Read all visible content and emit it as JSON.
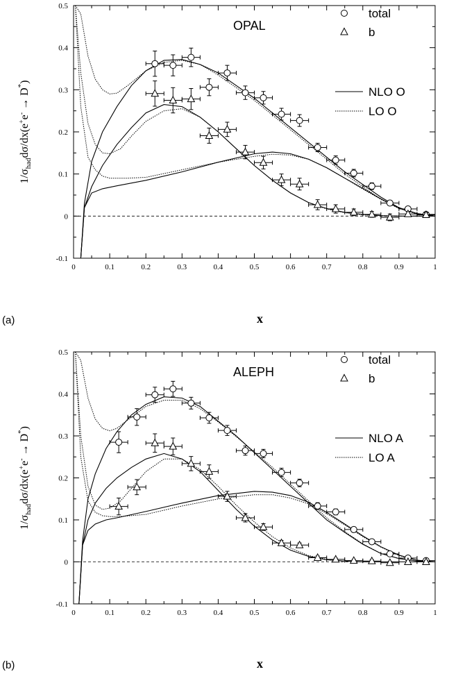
{
  "chart_data": [
    {
      "panel_label": "(a)",
      "type": "scatter",
      "experiment": "OPAL",
      "xlabel": "x",
      "ylabel": "1/σhaddσ/dx(e⁺e⁻ → D*)",
      "xlim": [
        0,
        1
      ],
      "ylim": [
        -0.1,
        0.5
      ],
      "xticks": [
        "0",
        "0.1",
        "0.2",
        "0.3",
        "0.4",
        "0.5",
        "0.6",
        "0.7",
        "0.8",
        "0.9",
        "1"
      ],
      "yticks": [
        "-0.1",
        "0",
        "0.1",
        "0.2",
        "0.3",
        "0.4",
        "0.5"
      ],
      "grid": false,
      "legend_position": "top-right",
      "legend": [
        {
          "label": "total",
          "marker": "circle"
        },
        {
          "label": "b",
          "marker": "triangle"
        },
        {
          "label": "NLO O",
          "style": "solid"
        },
        {
          "label": "LO O",
          "style": "dotted"
        }
      ],
      "series": [
        {
          "name": "total",
          "marker": "circle",
          "x": [
            0.225,
            0.275,
            0.325,
            0.375,
            0.425,
            0.475,
            0.525,
            0.575,
            0.625,
            0.675,
            0.725,
            0.775,
            0.825,
            0.875,
            0.925,
            0.975
          ],
          "y": [
            0.362,
            0.358,
            0.377,
            0.306,
            0.34,
            0.293,
            0.281,
            0.242,
            0.227,
            0.163,
            0.133,
            0.102,
            0.071,
            0.031,
            0.017,
            0.004
          ],
          "yerr": [
            0.03,
            0.025,
            0.022,
            0.02,
            0.018,
            0.016,
            0.015,
            0.014,
            0.014,
            0.01,
            0.01,
            0.009,
            0.008,
            0.006,
            0.006,
            0.005
          ]
        },
        {
          "name": "b",
          "marker": "triangle",
          "x": [
            0.225,
            0.275,
            0.325,
            0.375,
            0.425,
            0.475,
            0.525,
            0.575,
            0.625,
            0.675,
            0.725,
            0.775,
            0.825,
            0.875,
            0.925,
            0.975
          ],
          "y": [
            0.291,
            0.275,
            0.278,
            0.191,
            0.206,
            0.152,
            0.127,
            0.086,
            0.076,
            0.027,
            0.017,
            0.009,
            0.004,
            -0.003,
            0.005,
            0.003
          ],
          "yerr": [
            0.03,
            0.03,
            0.025,
            0.018,
            0.017,
            0.016,
            0.015,
            0.014,
            0.014,
            0.012,
            0.01,
            0.008,
            0.007,
            0.008,
            0.006,
            0.005
          ]
        }
      ],
      "curves": [
        {
          "group": "NLO O",
          "style": "solid",
          "component": "total",
          "x": [
            0.02,
            0.03,
            0.05,
            0.08,
            0.12,
            0.16,
            0.2,
            0.25,
            0.3,
            0.35,
            0.4,
            0.45,
            0.5,
            0.55,
            0.6,
            0.65,
            0.7,
            0.75,
            0.8,
            0.85,
            0.9,
            0.95,
            1.0
          ],
          "y": [
            -0.1,
            0.03,
            0.13,
            0.2,
            0.26,
            0.31,
            0.345,
            0.37,
            0.372,
            0.36,
            0.34,
            0.31,
            0.28,
            0.245,
            0.21,
            0.175,
            0.14,
            0.105,
            0.075,
            0.045,
            0.02,
            0.006,
            0.0
          ]
        },
        {
          "group": "NLO O",
          "style": "solid",
          "component": "b",
          "x": [
            0.02,
            0.03,
            0.05,
            0.08,
            0.12,
            0.16,
            0.2,
            0.25,
            0.3,
            0.35,
            0.4,
            0.45,
            0.5,
            0.55,
            0.6,
            0.65,
            0.7,
            0.75,
            0.8,
            0.85,
            0.9,
            0.95,
            1.0
          ],
          "y": [
            -0.1,
            0.02,
            0.07,
            0.12,
            0.17,
            0.21,
            0.245,
            0.265,
            0.26,
            0.235,
            0.2,
            0.16,
            0.12,
            0.085,
            0.055,
            0.032,
            0.018,
            0.009,
            0.004,
            0.001,
            0.0,
            0.0,
            0.0
          ]
        },
        {
          "group": "NLO O",
          "style": "solid",
          "component": "c",
          "x": [
            0.02,
            0.03,
            0.05,
            0.08,
            0.12,
            0.2,
            0.3,
            0.4,
            0.5,
            0.55,
            0.6,
            0.65,
            0.7,
            0.75,
            0.8,
            0.85,
            0.9,
            0.95,
            1.0
          ],
          "y": [
            -0.1,
            0.02,
            0.055,
            0.065,
            0.072,
            0.085,
            0.105,
            0.128,
            0.148,
            0.152,
            0.148,
            0.135,
            0.115,
            0.09,
            0.066,
            0.041,
            0.019,
            0.006,
            0.0
          ]
        },
        {
          "group": "LO O",
          "style": "dotted",
          "component": "total",
          "x": [
            0.005,
            0.02,
            0.04,
            0.06,
            0.08,
            0.1,
            0.12,
            0.15,
            0.2,
            0.25,
            0.3,
            0.35,
            0.4,
            0.45,
            0.5,
            0.55,
            0.6,
            0.65,
            0.7,
            0.75,
            0.8,
            0.85,
            0.9,
            0.95,
            1.0
          ],
          "y": [
            0.5,
            0.48,
            0.38,
            0.325,
            0.3,
            0.29,
            0.292,
            0.31,
            0.345,
            0.365,
            0.37,
            0.36,
            0.335,
            0.305,
            0.275,
            0.24,
            0.205,
            0.17,
            0.135,
            0.1,
            0.07,
            0.04,
            0.018,
            0.005,
            0.0
          ]
        },
        {
          "group": "LO O",
          "style": "dotted",
          "component": "b",
          "x": [
            0.005,
            0.02,
            0.04,
            0.06,
            0.08,
            0.1,
            0.13,
            0.16,
            0.2,
            0.25,
            0.3,
            0.35,
            0.4,
            0.45,
            0.5,
            0.55,
            0.6,
            0.65,
            0.7,
            0.75,
            0.8,
            0.85,
            0.9,
            0.95,
            1.0
          ],
          "y": [
            0.5,
            0.34,
            0.22,
            0.17,
            0.15,
            0.148,
            0.16,
            0.19,
            0.225,
            0.25,
            0.255,
            0.235,
            0.2,
            0.16,
            0.12,
            0.085,
            0.055,
            0.032,
            0.017,
            0.008,
            0.003,
            0.001,
            0.0,
            0.0,
            0.0
          ]
        },
        {
          "group": "LO O",
          "style": "dotted",
          "component": "c",
          "x": [
            0.005,
            0.02,
            0.04,
            0.06,
            0.08,
            0.1,
            0.12,
            0.15,
            0.2,
            0.3,
            0.4,
            0.5,
            0.55,
            0.6,
            0.65,
            0.7,
            0.75,
            0.8,
            0.85,
            0.9,
            0.95,
            1.0
          ],
          "y": [
            0.5,
            0.26,
            0.14,
            0.11,
            0.095,
            0.09,
            0.09,
            0.09,
            0.092,
            0.11,
            0.128,
            0.142,
            0.147,
            0.145,
            0.135,
            0.115,
            0.09,
            0.064,
            0.04,
            0.018,
            0.005,
            0.0
          ]
        }
      ]
    },
    {
      "panel_label": "(b)",
      "type": "scatter",
      "experiment": "ALEPH",
      "xlabel": "x",
      "ylabel": "1/σhaddσ/dx(e⁺e⁻ → D*)",
      "xlim": [
        0,
        1
      ],
      "ylim": [
        -0.1,
        0.5
      ],
      "xticks": [
        "0",
        "0.1",
        "0.2",
        "0.3",
        "0.4",
        "0.5",
        "0.6",
        "0.7",
        "0.8",
        "0.9",
        "1"
      ],
      "yticks": [
        "-0.1",
        "0",
        "0.1",
        "0.2",
        "0.3",
        "0.4",
        "0.5"
      ],
      "grid": false,
      "legend_position": "top-right",
      "legend": [
        {
          "label": "total",
          "marker": "circle"
        },
        {
          "label": "b",
          "marker": "triangle"
        },
        {
          "label": "NLO A",
          "style": "solid"
        },
        {
          "label": "LO A",
          "style": "dotted"
        }
      ],
      "series": [
        {
          "name": "total",
          "marker": "circle",
          "x": [
            0.125,
            0.175,
            0.225,
            0.275,
            0.325,
            0.375,
            0.425,
            0.475,
            0.525,
            0.575,
            0.625,
            0.675,
            0.725,
            0.775,
            0.825,
            0.875,
            0.925,
            0.975
          ],
          "y": [
            0.285,
            0.345,
            0.398,
            0.412,
            0.378,
            0.343,
            0.313,
            0.265,
            0.258,
            0.213,
            0.188,
            0.133,
            0.119,
            0.077,
            0.048,
            0.019,
            0.009,
            0.003
          ],
          "yerr": [
            0.025,
            0.02,
            0.018,
            0.018,
            0.014,
            0.013,
            0.012,
            0.011,
            0.01,
            0.01,
            0.009,
            0.008,
            0.007,
            0.006,
            0.005,
            0.004,
            0.004,
            0.003
          ]
        },
        {
          "name": "b",
          "marker": "triangle",
          "x": [
            0.125,
            0.175,
            0.225,
            0.275,
            0.325,
            0.375,
            0.425,
            0.475,
            0.525,
            0.575,
            0.625,
            0.675,
            0.725,
            0.775,
            0.825,
            0.875,
            0.925,
            0.975
          ],
          "y": [
            0.132,
            0.178,
            0.283,
            0.275,
            0.234,
            0.215,
            0.156,
            0.105,
            0.083,
            0.045,
            0.04,
            0.01,
            0.006,
            0.003,
            0.002,
            -0.002,
            0.0,
            0.0
          ],
          "yerr": [
            0.02,
            0.018,
            0.022,
            0.02,
            0.017,
            0.016,
            0.012,
            0.01,
            0.008,
            0.006,
            0.005,
            0.004,
            0.003,
            0.003,
            0.003,
            0.003,
            0.003,
            0.003
          ]
        }
      ],
      "curves": [
        {
          "group": "NLO A",
          "style": "solid",
          "component": "total",
          "x": [
            0.015,
            0.025,
            0.04,
            0.06,
            0.09,
            0.12,
            0.16,
            0.2,
            0.25,
            0.3,
            0.35,
            0.4,
            0.45,
            0.5,
            0.55,
            0.6,
            0.65,
            0.7,
            0.75,
            0.8,
            0.85,
            0.9,
            0.95,
            1.0
          ],
          "y": [
            -0.1,
            0.05,
            0.15,
            0.21,
            0.27,
            0.31,
            0.35,
            0.375,
            0.393,
            0.39,
            0.37,
            0.335,
            0.3,
            0.26,
            0.22,
            0.18,
            0.14,
            0.1,
            0.07,
            0.042,
            0.02,
            0.008,
            0.002,
            0.0
          ]
        },
        {
          "group": "NLO A",
          "style": "solid",
          "component": "b",
          "x": [
            0.015,
            0.025,
            0.04,
            0.06,
            0.09,
            0.12,
            0.16,
            0.2,
            0.25,
            0.3,
            0.35,
            0.4,
            0.45,
            0.5,
            0.55,
            0.6,
            0.65,
            0.7,
            0.75,
            0.8,
            0.85,
            0.9,
            0.95,
            1.0
          ],
          "y": [
            -0.1,
            0.04,
            0.1,
            0.14,
            0.175,
            0.2,
            0.225,
            0.245,
            0.258,
            0.245,
            0.215,
            0.17,
            0.125,
            0.085,
            0.052,
            0.028,
            0.013,
            0.005,
            0.002,
            0.0,
            0.0,
            0.0,
            0.0,
            0.0
          ]
        },
        {
          "group": "NLO A",
          "style": "solid",
          "component": "c",
          "x": [
            0.015,
            0.025,
            0.04,
            0.06,
            0.09,
            0.12,
            0.2,
            0.3,
            0.4,
            0.5,
            0.55,
            0.6,
            0.65,
            0.7,
            0.75,
            0.8,
            0.85,
            0.9,
            0.95,
            1.0
          ],
          "y": [
            -0.1,
            0.04,
            0.075,
            0.09,
            0.1,
            0.105,
            0.12,
            0.14,
            0.158,
            0.168,
            0.166,
            0.158,
            0.142,
            0.118,
            0.09,
            0.062,
            0.036,
            0.016,
            0.004,
            0.0
          ]
        },
        {
          "group": "LO A",
          "style": "dotted",
          "component": "total",
          "x": [
            0.005,
            0.02,
            0.04,
            0.06,
            0.08,
            0.1,
            0.12,
            0.15,
            0.2,
            0.25,
            0.3,
            0.35,
            0.4,
            0.45,
            0.5,
            0.55,
            0.6,
            0.65,
            0.7,
            0.75,
            0.8,
            0.85,
            0.9,
            0.95,
            1.0
          ],
          "y": [
            0.5,
            0.48,
            0.39,
            0.34,
            0.318,
            0.312,
            0.318,
            0.338,
            0.37,
            0.385,
            0.385,
            0.365,
            0.333,
            0.298,
            0.262,
            0.225,
            0.185,
            0.145,
            0.105,
            0.072,
            0.043,
            0.02,
            0.008,
            0.002,
            0.0
          ]
        },
        {
          "group": "LO A",
          "style": "dotted",
          "component": "b",
          "x": [
            0.005,
            0.02,
            0.04,
            0.06,
            0.08,
            0.1,
            0.13,
            0.16,
            0.2,
            0.25,
            0.3,
            0.35,
            0.4,
            0.45,
            0.5,
            0.55,
            0.6,
            0.65,
            0.7,
            0.75,
            0.8,
            0.85,
            0.9,
            0.95,
            1.0
          ],
          "y": [
            0.5,
            0.3,
            0.18,
            0.135,
            0.125,
            0.128,
            0.145,
            0.175,
            0.215,
            0.245,
            0.245,
            0.22,
            0.18,
            0.135,
            0.095,
            0.06,
            0.033,
            0.015,
            0.006,
            0.002,
            0.0,
            0.0,
            0.0,
            0.0,
            0.0
          ]
        },
        {
          "group": "LO A",
          "style": "dotted",
          "component": "c",
          "x": [
            0.005,
            0.02,
            0.04,
            0.06,
            0.08,
            0.1,
            0.13,
            0.2,
            0.3,
            0.4,
            0.5,
            0.55,
            0.6,
            0.65,
            0.7,
            0.75,
            0.8,
            0.85,
            0.9,
            0.95,
            1.0
          ],
          "y": [
            0.5,
            0.25,
            0.145,
            0.118,
            0.11,
            0.108,
            0.108,
            0.113,
            0.133,
            0.15,
            0.16,
            0.16,
            0.152,
            0.138,
            0.115,
            0.088,
            0.06,
            0.035,
            0.015,
            0.004,
            0.0
          ]
        }
      ]
    }
  ]
}
